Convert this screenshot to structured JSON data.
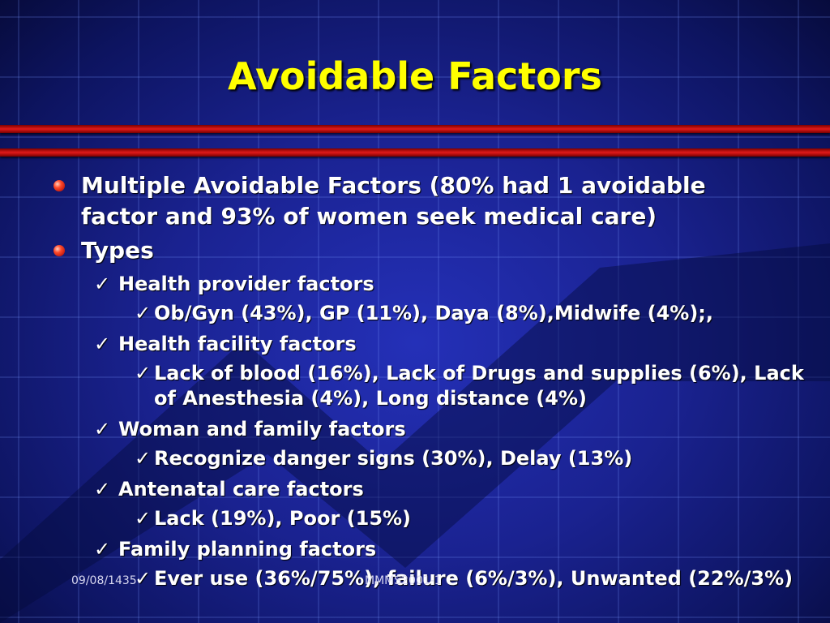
{
  "slide": {
    "title": "Avoidable Factors",
    "bullets": [
      "Multiple Avoidable Factors (80% had 1 avoidable factor and 93%  of women seek medical care)",
      "Types"
    ],
    "types": [
      {
        "label": "Health provider factors",
        "detail": "Ob/Gyn (43%), GP (11%), Daya (8%),Midwife (4%);,"
      },
      {
        "label": "Health facility factors",
        "detail": "Lack of blood (16%), Lack of Drugs and supplies (6%), Lack of Anesthesia (4%), Long distance (4%)"
      },
      {
        "label": "Woman and family factors",
        "detail": "Recognize danger signs (30%), Delay (13%)"
      },
      {
        "label": "Antenatal care factors",
        "detail": "Lack (19%), Poor (15%)"
      },
      {
        "label": "Family planning factors",
        "detail": "Ever use (36%/75%), failure (6%/3%), Unwanted (22%/3%)"
      }
    ],
    "footer": {
      "date": "09/08/1435",
      "center": "MMMS2001-1"
    }
  },
  "colors": {
    "title": "#ffff00",
    "background": "#1a2290",
    "rule": "#e01a1a",
    "bullet": "#ff4a2a"
  },
  "icons": {
    "bullet": "red-sphere-bullet-icon",
    "check": "check-mark-icon"
  }
}
